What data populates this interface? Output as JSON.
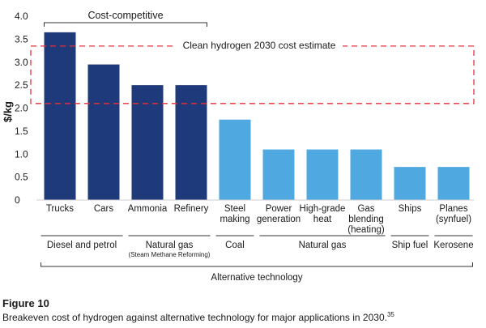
{
  "chart_data": {
    "type": "bar",
    "ylabel": "$/kg",
    "ylim": [
      0,
      4.0
    ],
    "yticks": [
      {
        "value": 0,
        "label": "0"
      },
      {
        "value": 0.5,
        "label": "0.5"
      },
      {
        "value": 1.0,
        "label": "1.0"
      },
      {
        "value": 1.5,
        "label": "1.5"
      },
      {
        "value": 2.0,
        "label": "2.0"
      },
      {
        "value": 2.5,
        "label": "2.5"
      },
      {
        "value": 3.0,
        "label": "3.0"
      },
      {
        "value": 3.5,
        "label": "3.5"
      },
      {
        "value": 4.0,
        "label": "4.0"
      }
    ],
    "categories": [
      {
        "lines": [
          "Trucks"
        ],
        "value": 3.65,
        "color": "#1f3a7a"
      },
      {
        "lines": [
          "Cars"
        ],
        "value": 2.95,
        "color": "#1f3a7a"
      },
      {
        "lines": [
          "Ammonia"
        ],
        "value": 2.5,
        "color": "#1f3a7a"
      },
      {
        "lines": [
          "Refinery"
        ],
        "value": 2.5,
        "color": "#1f3a7a"
      },
      {
        "lines": [
          "Steel",
          "making"
        ],
        "value": 1.75,
        "color": "#4fa8e0"
      },
      {
        "lines": [
          "Power",
          "generation"
        ],
        "value": 1.1,
        "color": "#4fa8e0"
      },
      {
        "lines": [
          "High-grade",
          "heat"
        ],
        "value": 1.1,
        "color": "#4fa8e0"
      },
      {
        "lines": [
          "Gas",
          "blending",
          "(heating)"
        ],
        "value": 1.1,
        "color": "#4fa8e0"
      },
      {
        "lines": [
          "Ships"
        ],
        "value": 0.72,
        "color": "#4fa8e0"
      },
      {
        "lines": [
          "Planes",
          "(synfuel)"
        ],
        "value": 0.72,
        "color": "#4fa8e0"
      }
    ],
    "annotations": {
      "cost_competitive": {
        "label": "Cost-competitive",
        "from_index": 0,
        "to_index": 3
      },
      "estimate_band": {
        "label": "Clean hydrogen 2030 cost estimate",
        "low": 2.1,
        "high": 3.35,
        "color": "#e0323c"
      }
    },
    "groups": [
      {
        "label": "Diesel and petrol",
        "sublabel": "",
        "from_index": 0,
        "to_index": 1
      },
      {
        "label": "Natural gas",
        "sublabel": "(Steam Methane Reforming)",
        "from_index": 2,
        "to_index": 3
      },
      {
        "label": "Coal",
        "sublabel": "",
        "from_index": 4,
        "to_index": 4
      },
      {
        "label": "Natural gas",
        "sublabel": "",
        "from_index": 5,
        "to_index": 7
      },
      {
        "label": "Ship fuel",
        "sublabel": "",
        "from_index": 8,
        "to_index": 8
      },
      {
        "label": "Kerosene",
        "sublabel": "",
        "from_index": 9,
        "to_index": 9
      }
    ],
    "supergroup": {
      "label": "Alternative technology",
      "from_index": 0,
      "to_index": 9
    }
  },
  "caption": {
    "figure_label": "Figure 10",
    "text": "Breakeven cost of hydrogen against alternative technology for major applications in 2030.",
    "footnote": "35"
  }
}
